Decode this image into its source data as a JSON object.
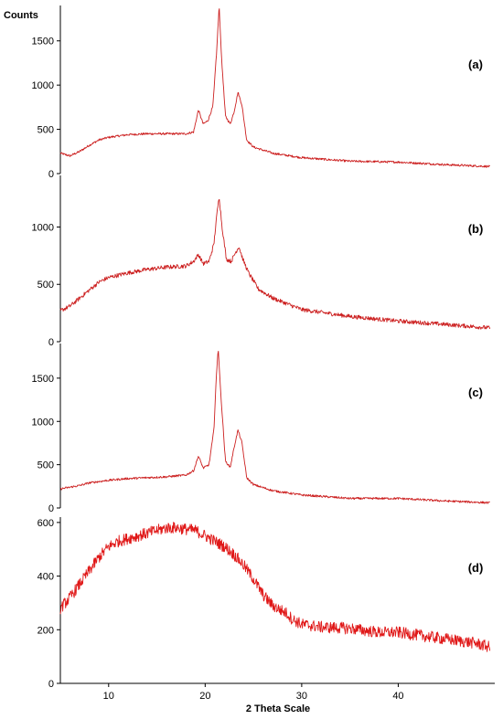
{
  "chart_data": {
    "type": "line",
    "xlabel": "2 Theta Scale",
    "ylabel": "Counts",
    "xlim": [
      5,
      50
    ],
    "x_ticks": [
      10,
      20,
      30,
      40
    ],
    "line_color": "#cc2020",
    "dense_color": "#e01818",
    "panels": [
      {
        "label": "(a)",
        "ylim": [
          0,
          1900
        ],
        "y_ticks": [
          0,
          500,
          1000,
          1500
        ],
        "noise": 12,
        "points": [
          [
            5,
            230
          ],
          [
            6,
            200
          ],
          [
            7,
            250
          ],
          [
            8,
            320
          ],
          [
            9,
            380
          ],
          [
            10,
            410
          ],
          [
            12,
            440
          ],
          [
            14,
            450
          ],
          [
            16,
            450
          ],
          [
            18,
            450
          ],
          [
            18.8,
            470
          ],
          [
            19.3,
            720
          ],
          [
            19.8,
            560
          ],
          [
            20.3,
            600
          ],
          [
            20.8,
            760
          ],
          [
            21.2,
            1400
          ],
          [
            21.45,
            1900
          ],
          [
            21.7,
            1300
          ],
          [
            22.1,
            650
          ],
          [
            22.6,
            560
          ],
          [
            23.0,
            700
          ],
          [
            23.4,
            920
          ],
          [
            23.8,
            780
          ],
          [
            24.3,
            380
          ],
          [
            25,
            300
          ],
          [
            27,
            230
          ],
          [
            30,
            180
          ],
          [
            35,
            140
          ],
          [
            40,
            130
          ],
          [
            45,
            100
          ],
          [
            49.5,
            80
          ]
        ]
      },
      {
        "label": "(b)",
        "ylim": [
          0,
          1450
        ],
        "y_ticks": [
          0,
          500,
          1000
        ],
        "noise": 18,
        "points": [
          [
            5,
            270
          ],
          [
            6,
            310
          ],
          [
            7,
            380
          ],
          [
            8,
            450
          ],
          [
            9,
            520
          ],
          [
            10,
            560
          ],
          [
            12,
            600
          ],
          [
            14,
            630
          ],
          [
            16,
            650
          ],
          [
            18,
            660
          ],
          [
            18.8,
            700
          ],
          [
            19.3,
            760
          ],
          [
            19.8,
            680
          ],
          [
            20.4,
            700
          ],
          [
            20.9,
            850
          ],
          [
            21.2,
            1100
          ],
          [
            21.45,
            1270
          ],
          [
            21.75,
            1000
          ],
          [
            22.2,
            720
          ],
          [
            22.7,
            700
          ],
          [
            23.1,
            770
          ],
          [
            23.5,
            830
          ],
          [
            23.9,
            720
          ],
          [
            24.5,
            600
          ],
          [
            25.5,
            460
          ],
          [
            27,
            380
          ],
          [
            30,
            280
          ],
          [
            35,
            220
          ],
          [
            40,
            180
          ],
          [
            45,
            150
          ],
          [
            49.5,
            120
          ]
        ]
      },
      {
        "label": "(c)",
        "ylim": [
          0,
          1900
        ],
        "y_ticks": [
          0,
          500,
          1000,
          1500
        ],
        "noise": 12,
        "points": [
          [
            5,
            220
          ],
          [
            6,
            240
          ],
          [
            7,
            260
          ],
          [
            8,
            290
          ],
          [
            10,
            320
          ],
          [
            12,
            340
          ],
          [
            14,
            350
          ],
          [
            16,
            360
          ],
          [
            18,
            380
          ],
          [
            18.8,
            430
          ],
          [
            19.3,
            600
          ],
          [
            19.8,
            460
          ],
          [
            20.4,
            500
          ],
          [
            20.9,
            900
          ],
          [
            21.15,
            1500
          ],
          [
            21.35,
            1850
          ],
          [
            21.6,
            1350
          ],
          [
            22.1,
            540
          ],
          [
            22.6,
            470
          ],
          [
            23.0,
            700
          ],
          [
            23.4,
            900
          ],
          [
            23.8,
            760
          ],
          [
            24.3,
            350
          ],
          [
            25,
            270
          ],
          [
            27,
            200
          ],
          [
            30,
            150
          ],
          [
            35,
            110
          ],
          [
            40,
            110
          ],
          [
            45,
            80
          ],
          [
            49.5,
            60
          ]
        ]
      },
      {
        "label": "(d)",
        "ylim": [
          0,
          620
        ],
        "y_ticks": [
          0,
          200,
          400,
          600
        ],
        "noise": 22,
        "points": [
          [
            5,
            280
          ],
          [
            6,
            320
          ],
          [
            7,
            370
          ],
          [
            8,
            420
          ],
          [
            9,
            470
          ],
          [
            10,
            510
          ],
          [
            11,
            530
          ],
          [
            12,
            540
          ],
          [
            13,
            550
          ],
          [
            14,
            560
          ],
          [
            15,
            570
          ],
          [
            16,
            580
          ],
          [
            17,
            580
          ],
          [
            18,
            575
          ],
          [
            19,
            570
          ],
          [
            20,
            550
          ],
          [
            21,
            530
          ],
          [
            22,
            510
          ],
          [
            23,
            480
          ],
          [
            24,
            440
          ],
          [
            25,
            390
          ],
          [
            26,
            330
          ],
          [
            27,
            290
          ],
          [
            28,
            270
          ],
          [
            28.5,
            260
          ],
          [
            29,
            240
          ],
          [
            30,
            220
          ],
          [
            32,
            210
          ],
          [
            35,
            205
          ],
          [
            38,
            190
          ],
          [
            40,
            190
          ],
          [
            42,
            180
          ],
          [
            45,
            165
          ],
          [
            48,
            150
          ],
          [
            49.5,
            135
          ]
        ]
      }
    ]
  }
}
